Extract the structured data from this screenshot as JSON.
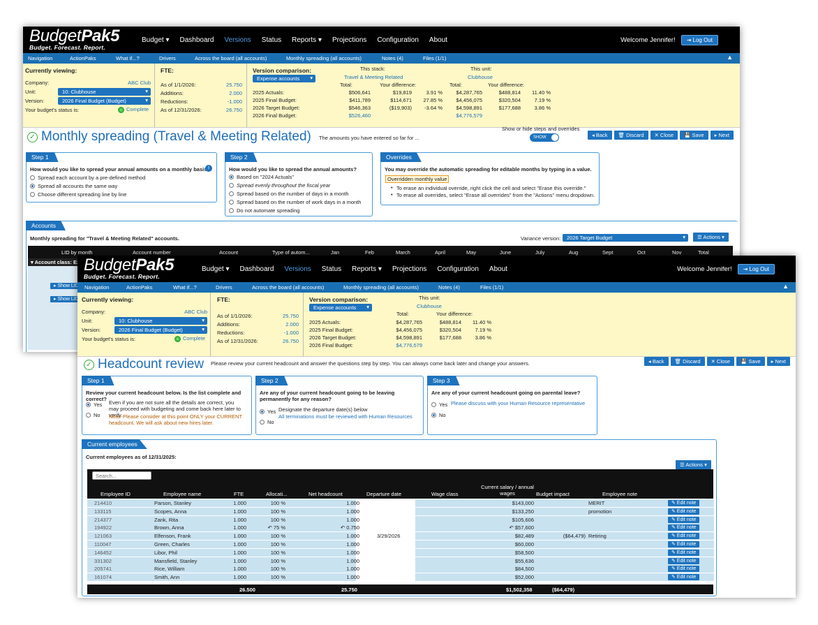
{
  "w1": {
    "logo": {
      "name_a": "Budget",
      "name_b": "Pak5",
      "tagline": "Budget. Forecast. Report."
    },
    "menu": [
      "Budget ▾",
      "Dashboard",
      "Versions",
      "Status",
      "Reports ▾",
      "Projections",
      "Configuration",
      "About"
    ],
    "welcome": "Welcome Jennifer!",
    "logout": "Log Out",
    "subnav": [
      "Navigation",
      "ActionPaks",
      "What if...?",
      "Drivers",
      "Across the board (all accounts)",
      "Monthly spreading (all accounts)",
      "Notes (4)",
      "Files (1/1)"
    ],
    "viewing": {
      "title": "Currently viewing:",
      "company_l": "Company:",
      "company": "ABC Club",
      "unit_l": "Unit:",
      "unit": "10: Clubhouse",
      "version_l": "Version:",
      "version": "2026 Final Budget (Budget)",
      "status_l": "Your budget's status is:",
      "status": "Complete"
    },
    "fte": {
      "title": "FTE:",
      "rows": [
        [
          "As of 1/1/2026:",
          "25.750"
        ],
        [
          "Additions:",
          "2.000"
        ],
        [
          "Reductions:",
          "-1.000"
        ],
        [
          "As of 12/31/2026:",
          "26.750"
        ]
      ]
    },
    "vc": {
      "title": "Version comparison:",
      "select": "Expense accounts",
      "stack_l": "This stack:",
      "stack": "Travel & Meeting Related",
      "unit_l": "This unit:",
      "unit": "Clubhouse",
      "total": "Total:",
      "diff": "Your difference:",
      "rows": [
        [
          "2025 Actuals:",
          "$506,641",
          "$19,819",
          "3.91 %",
          "$4,287,765",
          "$488,814",
          "11.40 %"
        ],
        [
          "2025 Final Budget:",
          "$411,789",
          "$114,671",
          "27.85 %",
          "$4,456,075",
          "$320,504",
          "7.19 %"
        ],
        [
          "2026 Target Budget:",
          "$546,363",
          "($19,903)",
          "-3.64 %",
          "$4,598,891",
          "$177,688",
          "3.86 %"
        ],
        [
          "2026 Final Budget:",
          "$526,460",
          "",
          "",
          "$4,776,579",
          "",
          ""
        ]
      ]
    },
    "title": "Monthly spreading (Travel & Meeting Related)",
    "subtitle": "The amounts you have entered so far for ...",
    "show_hide": "Show or hide steps and overrides",
    "toggle": "SHOW",
    "buttons": [
      "◂ Back",
      "🗑 Discard",
      "✕ Close",
      "💾 Save",
      "▸ Next"
    ],
    "step1": {
      "tab": "Step 1",
      "q": "How would you like to spread your annual amounts on a monthly basis?",
      "opts": [
        "Spread each account by a pre-defined method",
        "Spread all accounts the same way",
        "Choose different spreading line by line"
      ]
    },
    "step2": {
      "tab": "Step 2",
      "q": "How would you like to spread the annual amounts?",
      "opts": [
        "Based on \"2024 Actuals\"",
        "Spread evenly throughout the fiscal year",
        "Spread based on the number of days in a month",
        "Spread based on the number of work days in a month",
        "Do not automate spreading"
      ]
    },
    "overrides": {
      "tab": "Overrides",
      "q": "You may override the automatic spreading for editable months by typing in a value.",
      "label": "Overridden monthly value",
      "b1": "To erase an individual override, right click the cell and select \"Erase this override.\"",
      "b2": "To erase all overrides, select \"Erase all overrides\" from the \"Actions\" menu dropdown."
    },
    "accounts": {
      "tab": "Accounts",
      "desc": "Monthly spreading for \"Travel & Meeting Related\" accounts.",
      "variance_l": "Variance version:",
      "variance": "2026 Target Budget",
      "actions": "☰ Actions ▾",
      "cols": [
        "LID by month",
        "Account number",
        "Account",
        "Type of autom...",
        "Jan",
        "Feb",
        "March",
        "April",
        "May",
        "June",
        "July",
        "Aug",
        "Sept",
        "Oct",
        "Nov",
        "Total"
      ],
      "class_row": "▾ Account class: Ex",
      "show": "▸ Show LID"
    }
  },
  "w2": {
    "logo": {
      "name_a": "Budget",
      "name_b": "Pak5",
      "tagline": "Budget. Forecast. Report."
    },
    "menu": [
      "Budget ▾",
      "Dashboard",
      "Versions",
      "Status",
      "Reports ▾",
      "Projections",
      "Configuration",
      "About"
    ],
    "welcome": "Welcome Jennifer!",
    "logout": "Log Out",
    "subnav": [
      "Navigation",
      "ActionPaks",
      "What if...?",
      "Drivers",
      "Across the board (all accounts)",
      "Monthly spreading (all accounts)",
      "Notes (4)",
      "Files (1/1)"
    ],
    "viewing": {
      "title": "Currently viewing:",
      "company_l": "Company:",
      "company": "ABC Club",
      "unit_l": "Unit:",
      "unit": "10: Clubhouse",
      "version_l": "Version:",
      "version": "2026 Final Budget (Budget)",
      "status_l": "Your budget's status is:",
      "status": "Complete"
    },
    "fte": {
      "title": "FTE:",
      "rows": [
        [
          "As of 1/1/2026:",
          "25.750"
        ],
        [
          "Additions:",
          "2.000"
        ],
        [
          "Reductions:",
          "-1.000"
        ],
        [
          "As of 12/31/2026:",
          "26.750"
        ]
      ]
    },
    "vc": {
      "title": "Version comparison:",
      "select": "Expense accounts",
      "unit_l": "This unit:",
      "unit": "Clubhouse",
      "total": "Total:",
      "diff": "Your difference:",
      "rows": [
        [
          "2025 Actuals:",
          "$4,287,765",
          "$488,814",
          "11.40 %"
        ],
        [
          "2025 Final Budget:",
          "$4,456,075",
          "$320,504",
          "7.19 %"
        ],
        [
          "2026 Target Budget:",
          "$4,598,891",
          "$177,688",
          "3.86 %"
        ],
        [
          "2026 Final Budget:",
          "$4,776,579",
          "",
          ""
        ]
      ]
    },
    "title": "Headcount review",
    "subtitle": "Please review your current headcount and answer the questions step by step. You can always come back later and change your answers.",
    "buttons": [
      "◂ Back",
      "🗑 Discard",
      "✕ Close",
      "💾 Save",
      "▸ Next"
    ],
    "step1": {
      "tab": "Step 1",
      "q": "Review your current headcount below. Is the list complete and correct?",
      "yes": "Yes",
      "yes_note": "Even if you are not sure all the details are correct, you may proceed with budgeting and come back here later to verify.",
      "note": "Note: Please consider at this point ONLY your CURRENT headcount. We will ask about new hires later.",
      "no": "No"
    },
    "step2": {
      "tab": "Step 2",
      "q": "Are any of your current headcount going to be leaving permanently for any reason?",
      "yes": "Yes",
      "yes_note": "Designate the departure date(s) below",
      "link": "All terminations must be reviewed with Human Resources",
      "no": "No"
    },
    "step3": {
      "tab": "Step 3",
      "q": "Are any of your current headcount going on parental leave?",
      "yes": "Yes",
      "link": "Please discuss with your Human Resource representative",
      "no": "No"
    },
    "emp": {
      "tab": "Current employees",
      "asof": "Current employees as of 12/31/2025:",
      "actions": "☰ Actions ▾",
      "search": "Search...",
      "cols": [
        "Employee ID",
        "Employee name",
        "FTE",
        "Allocati...",
        "Net headcount",
        "Departure date",
        "Wage class",
        "Current salary / annual wages",
        "Budget impact",
        "Employee note"
      ],
      "rows": [
        [
          "214410",
          "Parson, Stanley",
          "1.000",
          "100 %",
          "1.000",
          "",
          "",
          "$143,000",
          "",
          "MERIT"
        ],
        [
          "133115",
          "Scopes, Anna",
          "1.000",
          "100 %",
          "1.000",
          "",
          "",
          "$133,250",
          "",
          "promotion"
        ],
        [
          "214377",
          "Zank, Rita",
          "1.000",
          "100 %",
          "1.000",
          "",
          "",
          "$105,606",
          "",
          ""
        ],
        [
          "194922",
          "Brown, Anna",
          "1.000",
          "↶ 75 %",
          "↶ 0.750",
          "",
          "",
          "↶ $57,600",
          "",
          ""
        ],
        [
          "121063",
          "Elfenson, Frank",
          "1.000",
          "100 %",
          "1.000",
          "3/29/2026",
          "",
          "$82,489",
          "($64,479)",
          "Retiring"
        ],
        [
          "110047",
          "Green, Charles",
          "1.000",
          "100 %",
          "1.000",
          "",
          "",
          "$60,000",
          "",
          ""
        ],
        [
          "146452",
          "Libor, Phil",
          "1.000",
          "100 %",
          "1.000",
          "",
          "",
          "$58,500",
          "",
          ""
        ],
        [
          "331302",
          "Mansfield, Stanley",
          "1.000",
          "100 %",
          "1.000",
          "",
          "",
          "$55,636",
          "",
          ""
        ],
        [
          "205741",
          "Rice, William",
          "1.000",
          "100 %",
          "1.000",
          "",
          "",
          "$84,500",
          "",
          ""
        ],
        [
          "161074",
          "Smith, Ann",
          "1.000",
          "100 %",
          "1.000",
          "",
          "",
          "$52,000",
          "",
          ""
        ]
      ],
      "edit": "✎ Edit note",
      "total": {
        "fte": "26.500",
        "net": "25.750",
        "salary": "$1,502,358",
        "impact": "($64,479)"
      }
    }
  }
}
